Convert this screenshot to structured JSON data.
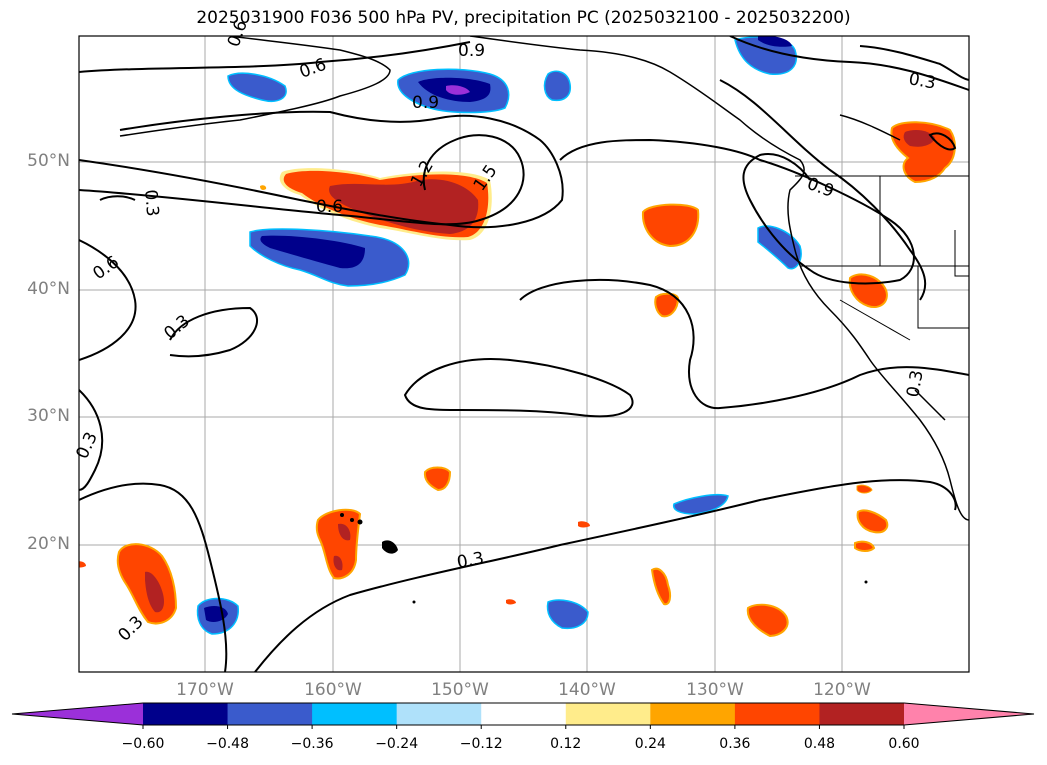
{
  "title": "2025031900 F036 500 hPa PV, precipitation PC (2025032100 - 2025032200)",
  "lat_labels": [
    "50°N",
    "40°N",
    "30°N",
    "20°N"
  ],
  "lon_labels": [
    "170°W",
    "160°W",
    "150°W",
    "140°W",
    "130°W",
    "120°W"
  ],
  "contour_labels": [
    "0.9",
    "0.9",
    "0.6",
    "0.6",
    "0.6",
    "0.3",
    "0.3",
    "0.3",
    "0.3",
    "0.3",
    "0.3",
    "0.9",
    "1.2",
    "1.5",
    "0.3",
    "0.6"
  ],
  "colorbar": {
    "ticks": [
      "−0.60",
      "−0.48",
      "−0.36",
      "−0.24",
      "−0.12",
      "0.12",
      "0.24",
      "0.36",
      "0.48",
      "0.60"
    ],
    "colors": [
      "#9b30d9",
      "#00008b",
      "#3a5bcc",
      "#00bfff",
      "#afe1fa",
      "#ffffff",
      "#ffec8b",
      "#ffa500",
      "#ff4500",
      "#b22222",
      "#ff82ab"
    ]
  },
  "colors": {
    "purple": "#9b30d9",
    "navy": "#00008b",
    "blue": "#3a5bcc",
    "cyan": "#00bfff",
    "lightblue": "#afe1fa",
    "yellow": "#ffec8b",
    "orange": "#ffa500",
    "redorange": "#ff4500",
    "firebrick": "#b22222"
  }
}
